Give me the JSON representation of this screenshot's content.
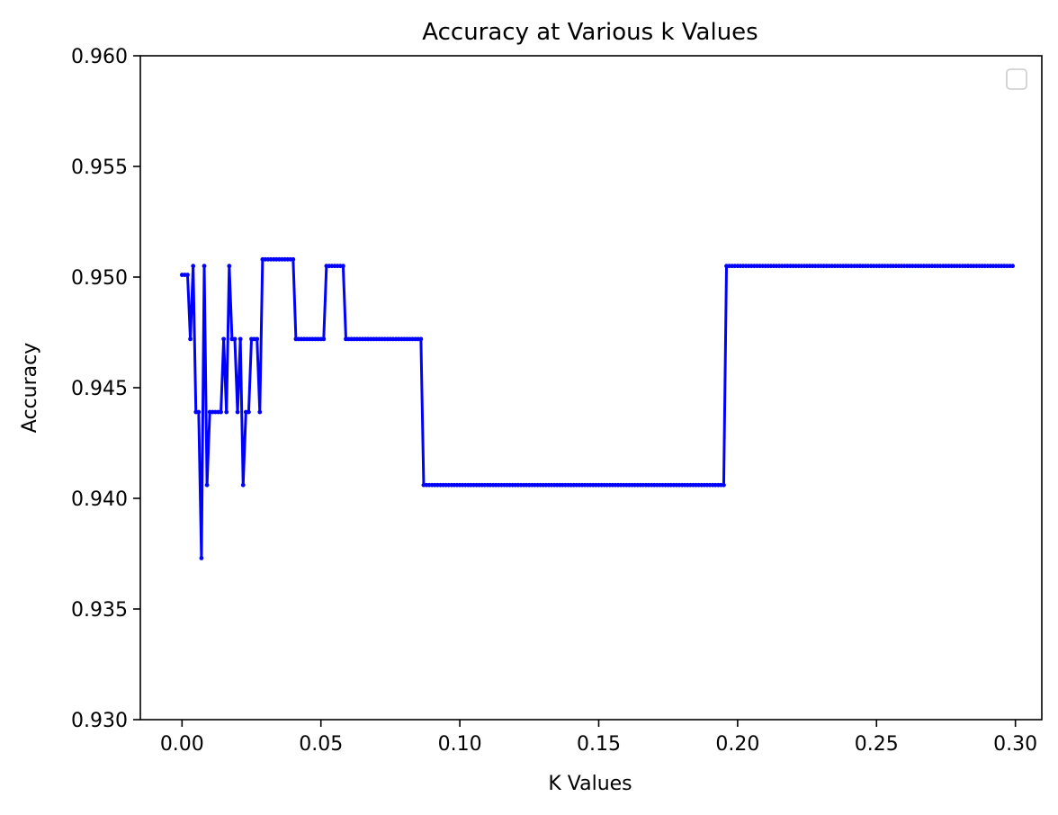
{
  "chart_data": {
    "type": "line",
    "title": "Accuracy at Various k Values",
    "xlabel": "K Values",
    "ylabel": "Accuracy",
    "xlim": [
      -0.015,
      0.3095
    ],
    "ylim": [
      0.93,
      0.96
    ],
    "xticks": [
      0.0,
      0.05,
      0.1,
      0.15,
      0.2,
      0.25,
      0.3
    ],
    "xtick_labels": [
      "0.00",
      "0.05",
      "0.10",
      "0.15",
      "0.20",
      "0.25",
      "0.30"
    ],
    "yticks": [
      0.93,
      0.935,
      0.94,
      0.945,
      0.95,
      0.955,
      0.96
    ],
    "ytick_labels": [
      "0.930",
      "0.935",
      "0.940",
      "0.945",
      "0.950",
      "0.955",
      "0.960"
    ],
    "grid": false,
    "legend": "top-right (empty)",
    "series": [
      {
        "color": "#0000ff",
        "marker": "dot",
        "segments": [
          {
            "x_start": 0.0,
            "x_end": 0.002,
            "step": 0.001,
            "y": 0.9501
          },
          {
            "x": 0.003,
            "y": 0.9472
          },
          {
            "x": 0.004,
            "y": 0.9505
          },
          {
            "x": 0.005,
            "y": 0.9439
          },
          {
            "x": 0.006,
            "y": 0.9439
          },
          {
            "x": 0.007,
            "y": 0.9373
          },
          {
            "x": 0.008,
            "y": 0.9505
          },
          {
            "x": 0.009,
            "y": 0.9406
          },
          {
            "x_start": 0.01,
            "x_end": 0.014,
            "step": 0.001,
            "y": 0.9439
          },
          {
            "x": 0.015,
            "y": 0.9472
          },
          {
            "x": 0.016,
            "y": 0.9439
          },
          {
            "x": 0.017,
            "y": 0.9505
          },
          {
            "x": 0.018,
            "y": 0.9472
          },
          {
            "x": 0.019,
            "y": 0.9472
          },
          {
            "x": 0.02,
            "y": 0.9439
          },
          {
            "x": 0.021,
            "y": 0.9472
          },
          {
            "x": 0.022,
            "y": 0.9406
          },
          {
            "x": 0.023,
            "y": 0.9439
          },
          {
            "x": 0.024,
            "y": 0.9439
          },
          {
            "x": 0.025,
            "y": 0.9472
          },
          {
            "x": 0.026,
            "y": 0.9472
          },
          {
            "x": 0.027,
            "y": 0.9472
          },
          {
            "x": 0.028,
            "y": 0.9439
          },
          {
            "x_start": 0.029,
            "x_end": 0.04,
            "step": 0.001,
            "y": 0.9508
          },
          {
            "x_start": 0.041,
            "x_end": 0.051,
            "step": 0.001,
            "y": 0.9472
          },
          {
            "x_start": 0.052,
            "x_end": 0.058,
            "step": 0.001,
            "y": 0.9505
          },
          {
            "x_start": 0.059,
            "x_end": 0.086,
            "step": 0.001,
            "y": 0.9472
          },
          {
            "x_start": 0.087,
            "x_end": 0.195,
            "step": 0.001,
            "y": 0.9406
          },
          {
            "x_start": 0.196,
            "x_end": 0.299,
            "step": 0.001,
            "y": 0.9505
          }
        ]
      }
    ]
  }
}
